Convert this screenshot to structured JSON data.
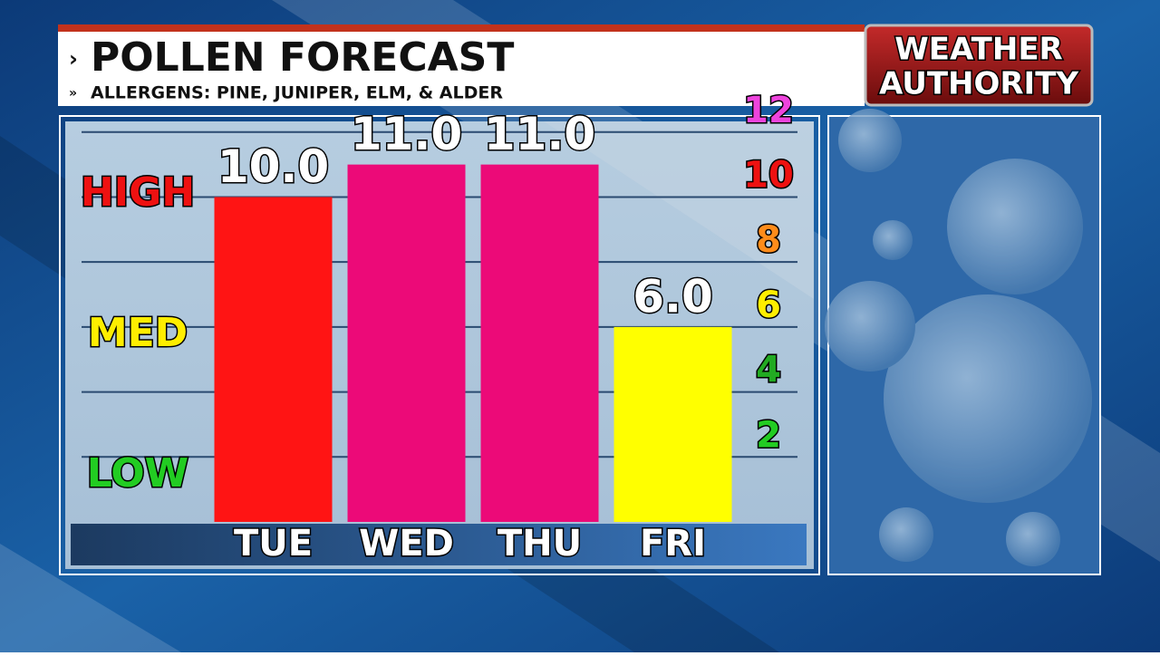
{
  "header": {
    "title": "POLLEN FORECAST",
    "subtitle": "ALLERGENS: PINE, JUNIPER, ELM, & ALDER"
  },
  "logo": {
    "line1": "WEATHER",
    "line2": "AUTHORITY"
  },
  "chart_data": {
    "type": "bar",
    "categories": [
      "TUE",
      "WED",
      "THU",
      "FRI"
    ],
    "values": [
      10.0,
      11.0,
      11.0,
      6.0
    ],
    "value_labels": [
      "10.0",
      "11.0",
      "11.0",
      "6.0"
    ],
    "colors": [
      "#ff1414",
      "#ec0a78",
      "#ec0a78",
      "#ffff00"
    ],
    "ylim": [
      0,
      12.3
    ],
    "yticks": [
      2,
      4,
      6,
      8,
      10,
      12
    ],
    "ytick_colors": [
      "#22cc22",
      "#22aa22",
      "#ffee00",
      "#ff8c1a",
      "#ee1111",
      "#ee44dd"
    ],
    "level_labels": [
      {
        "text": "HIGH",
        "color": "#ee1111"
      },
      {
        "text": "MED",
        "color": "#ffee00"
      },
      {
        "text": "LOW",
        "color": "#22cc22"
      }
    ],
    "grid": true
  }
}
